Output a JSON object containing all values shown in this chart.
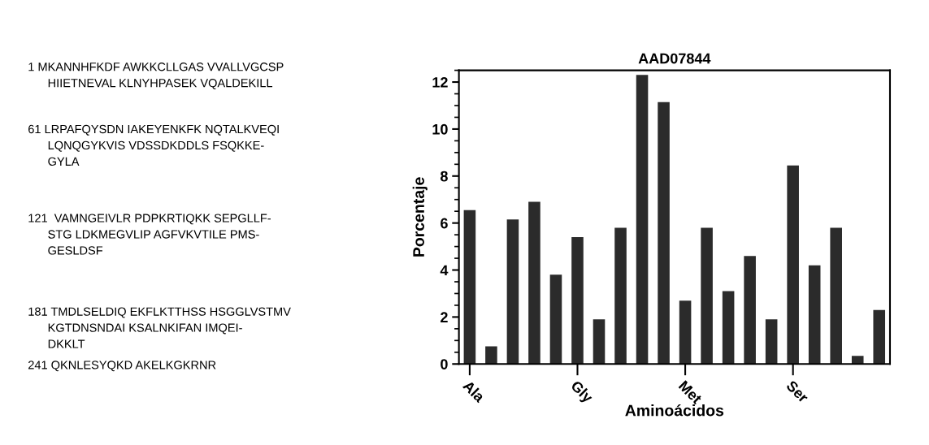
{
  "chart_data": {
    "type": "bar",
    "title": "AAD07844",
    "xlabel": "Aminoácidos",
    "ylabel": "Porcentaje",
    "categories": [
      "Ala",
      null,
      null,
      null,
      null,
      "Gly",
      null,
      null,
      null,
      null,
      "Met",
      null,
      null,
      null,
      null,
      "Ser",
      null,
      null,
      null,
      null
    ],
    "values": [
      6.55,
      0.75,
      6.15,
      6.9,
      3.8,
      5.4,
      1.9,
      5.8,
      12.3,
      11.15,
      2.7,
      5.8,
      3.1,
      4.6,
      1.9,
      8.45,
      4.2,
      5.8,
      0.35,
      2.3
    ],
    "color": "#2b2b2b",
    "ylim": [
      0,
      12.5
    ],
    "yticks": [
      0,
      2,
      4,
      6,
      8,
      10,
      12
    ],
    "grid": false,
    "legend": false,
    "annotations": [
      "1 MKANNHFKDF AWKKCLLGAS VVALLVGCSP\n      HIIETNEVAL KLNYHPASEK VQALDEKILL",
      "61 LRPAFQYSDN IAKEYENKFK NQTALKVEQI\n      LQNQGYKVIS VDSSDKDDLS FSQKKE-\n      GYLA",
      "121  VAMNGEIVLR PDPKRTIQKK SEPGLLF-\n      STG LDKMEGVLIP AGFVKVTILE PMS-\n      GESLDSF",
      "181 TMDLSELDIQ EKFLKTTHSS HSGGLVSTMV\n      KGTDNSNDAI KSALNKIFAN IMQEI-\n      DKKLT",
      "241 QKNLESYQKD AKELKGKRNR"
    ]
  }
}
